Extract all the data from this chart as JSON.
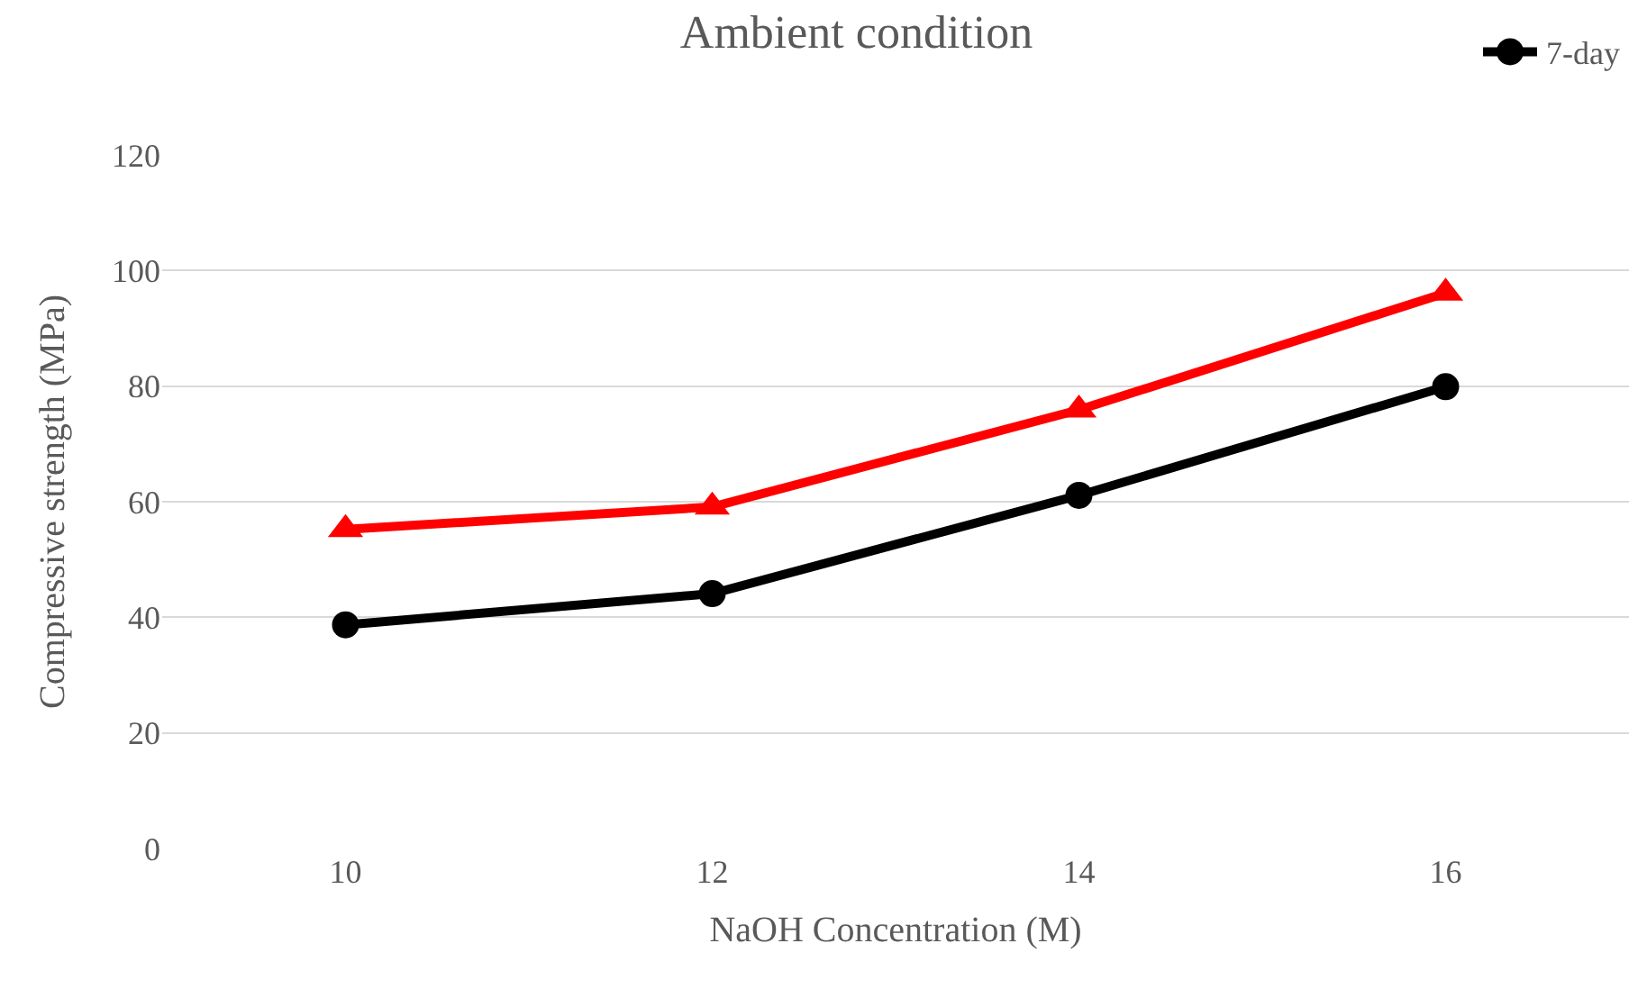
{
  "chart_data": {
    "type": "line",
    "title": "Ambient condition",
    "xlabel": "NaOH Concentration (M)",
    "ylabel": "Compressive strength (MPa)",
    "categories": [
      "10",
      "12",
      "14",
      "16"
    ],
    "series": [
      {
        "name": "7-day",
        "color": "#000000",
        "marker": "circle",
        "values": [
          38.7,
          44.1,
          61.1,
          79.9
        ]
      },
      {
        "color": "#ff0000",
        "marker": "triangle",
        "values": [
          55.2,
          59.1,
          75.9,
          96.1
        ]
      }
    ],
    "ylim": [
      0,
      120
    ],
    "yticks": [
      0,
      20,
      40,
      60,
      80,
      100,
      120
    ],
    "grid": "y",
    "legend": "top right",
    "line_style": "solid"
  }
}
